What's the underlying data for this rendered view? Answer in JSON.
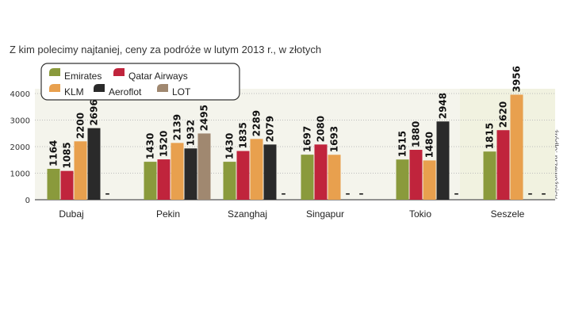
{
  "title": "Z kim polecimy najtaniej, ceny za podróże w lutym 2013 r., w złotych",
  "source_note": "źródło: przewoźnicy",
  "missing_marker": "–",
  "chart_data": {
    "type": "bar",
    "title": "Z kim polecimy najtaniej, ceny za podróże w lutym 2013 r., w złotych",
    "xlabel": "",
    "ylabel": "",
    "ylim": [
      0,
      4000
    ],
    "yticks": [
      0,
      1000,
      2000,
      3000,
      4000
    ],
    "grid": true,
    "legend_position": "top-left",
    "categories": [
      "Dubaj",
      "Pekin",
      "Szanghaj",
      "Singapur",
      "Tokio",
      "Seszele"
    ],
    "series": [
      {
        "name": "Emirates",
        "color": "#8a9a3c",
        "values": [
          1164,
          1430,
          1430,
          1697,
          1515,
          1815
        ]
      },
      {
        "name": "Qatar Airways",
        "color": "#c0243c",
        "values": [
          1085,
          1520,
          1835,
          2080,
          1880,
          2620
        ]
      },
      {
        "name": "KLM",
        "color": "#e8a04e",
        "values": [
          2200,
          2139,
          2289,
          1693,
          1480,
          3956
        ]
      },
      {
        "name": "Aeroflot",
        "color": "#2a2a2a",
        "values": [
          2696,
          1932,
          2079,
          null,
          2948,
          null
        ]
      },
      {
        "name": "LOT",
        "color": "#a08870",
        "values": [
          null,
          2495,
          null,
          null,
          null,
          null
        ]
      }
    ]
  }
}
